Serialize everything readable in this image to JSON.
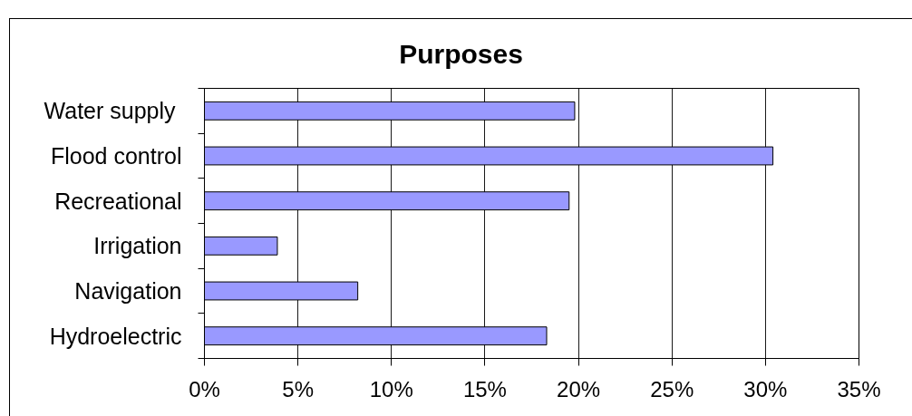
{
  "chart_data": {
    "type": "bar",
    "orientation": "horizontal",
    "title": "Purposes",
    "categories": [
      "Water  supply",
      "Flood control",
      "Recreational",
      "Irrigation",
      "Navigation",
      "Hydroelectric"
    ],
    "values": [
      19.8,
      30.4,
      19.5,
      3.9,
      8.2,
      18.3
    ],
    "color": "#9999ff",
    "xlim": [
      0,
      35
    ],
    "xticks": [
      {
        "value": 0,
        "label": "0%"
      },
      {
        "value": 5,
        "label": "5%"
      },
      {
        "value": 10,
        "label": "10%"
      },
      {
        "value": 15,
        "label": "15%"
      },
      {
        "value": 20,
        "label": "20%"
      },
      {
        "value": 25,
        "label": "25%"
      },
      {
        "value": 30,
        "label": "30%"
      },
      {
        "value": 35,
        "label": "35%"
      }
    ],
    "grid": "x"
  }
}
